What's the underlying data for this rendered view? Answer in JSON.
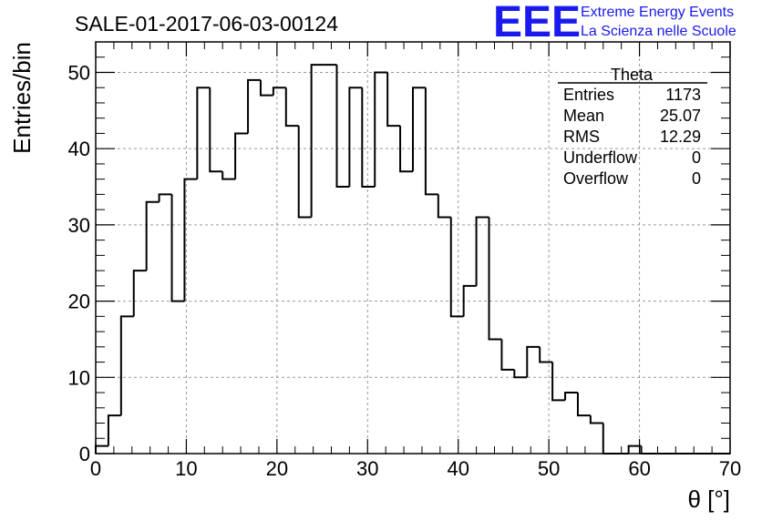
{
  "chart_data": {
    "type": "histogram",
    "title": "SALE-01-2017-06-03-00124",
    "xlabel": "θ [°]",
    "ylabel": "Entries/bin",
    "xlim": [
      0,
      70
    ],
    "ylim": [
      0,
      54
    ],
    "x_ticks": [
      "0",
      "10",
      "20",
      "30",
      "40",
      "50",
      "60",
      "70"
    ],
    "y_ticks": [
      "0",
      "10",
      "20",
      "30",
      "40",
      "50"
    ],
    "bin_width": 1.4,
    "values": [
      1,
      5,
      18,
      24,
      33,
      34,
      20,
      36,
      48,
      37,
      36,
      42,
      49,
      47,
      48,
      43,
      31,
      51,
      51,
      35,
      48,
      35,
      50,
      43,
      37,
      48,
      34,
      31,
      18,
      22,
      31,
      15,
      11,
      10,
      14,
      12,
      7,
      8,
      5,
      4,
      0,
      0,
      1,
      0,
      0,
      0,
      0,
      0,
      0,
      0
    ],
    "grid": true,
    "line_color": "#000000",
    "stats_box": {
      "title": "Theta",
      "rows": [
        {
          "label": "Entries",
          "value": "1173"
        },
        {
          "label": "Mean",
          "value": "25.07"
        },
        {
          "label": "RMS",
          "value": "12.29"
        },
        {
          "label": "Underflow",
          "value": "0"
        },
        {
          "label": "Overflow",
          "value": "0"
        }
      ]
    }
  },
  "logo": {
    "mark": "EEE",
    "line1": "Extreme Energy Events",
    "line2": "La Scienza nelle Scuole",
    "color": "#1a1aee"
  }
}
